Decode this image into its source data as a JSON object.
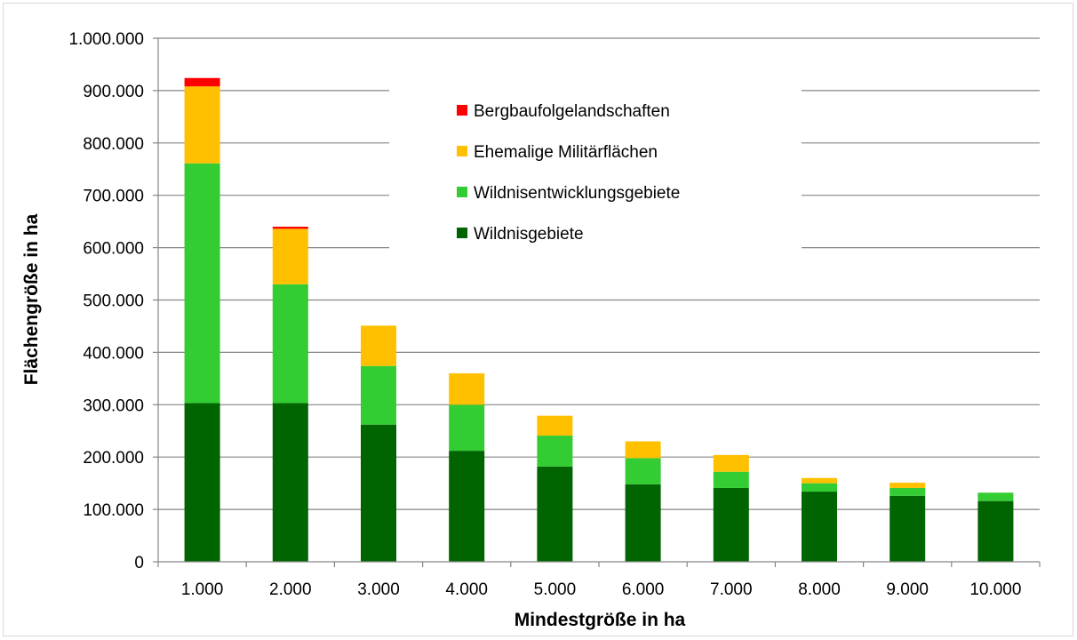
{
  "chart_data": {
    "type": "bar",
    "stacked": true,
    "title": "",
    "xlabel": "Mindestgröße in ha",
    "ylabel": "Flächengröße in ha",
    "ylim": [
      0,
      1000000
    ],
    "y_ticks": [
      0,
      100000,
      200000,
      300000,
      400000,
      500000,
      600000,
      700000,
      800000,
      900000,
      1000000
    ],
    "y_tick_labels": [
      "0",
      "100.000",
      "200.000",
      "300.000",
      "400.000",
      "500.000",
      "600.000",
      "700.000",
      "800.000",
      "900.000",
      "1.000.000"
    ],
    "categories": [
      "1.000",
      "2.000",
      "3.000",
      "4.000",
      "5.000",
      "6.000",
      "7.000",
      "8.000",
      "9.000",
      "10.000"
    ],
    "grid": true,
    "legend_position": "top-center",
    "series": [
      {
        "name": "Wildnisgebiete",
        "color": "#006400",
        "values": [
          303000,
          303000,
          262000,
          212000,
          182000,
          148000,
          141000,
          134000,
          126000,
          116000
        ]
      },
      {
        "name": "Wildnisentwicklungsgebiete",
        "color": "#33cc33",
        "values": [
          458000,
          227000,
          112000,
          88000,
          59000,
          50000,
          31000,
          16000,
          15000,
          16000
        ]
      },
      {
        "name": "Ehemalige Militärflächen",
        "color": "#ffc000",
        "values": [
          147000,
          106000,
          77000,
          60000,
          38000,
          32000,
          32000,
          10000,
          10000,
          0
        ]
      },
      {
        "name": "Bergbaufolgelandschaften",
        "color": "#ff0000",
        "values": [
          16000,
          4000,
          0,
          0,
          0,
          0,
          0,
          0,
          0,
          0
        ]
      }
    ],
    "legend_order": [
      "Bergbaufolgelandschaften",
      "Ehemalige Militärflächen",
      "Wildnisentwicklungsgebiete",
      "Wildnisgebiete"
    ]
  }
}
